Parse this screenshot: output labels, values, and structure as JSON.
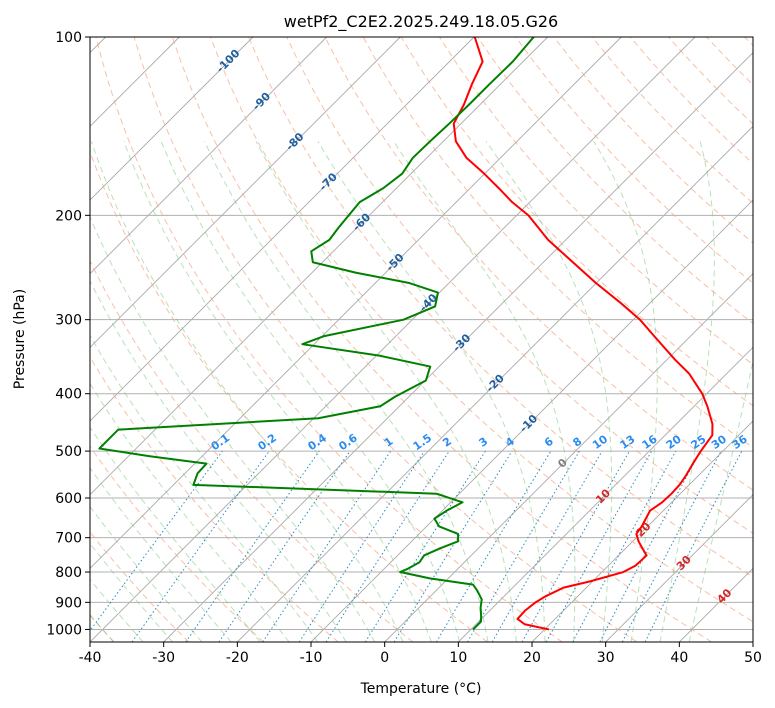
{
  "chart_data": {
    "type": "skew-t",
    "title": "wetPf2_C2E2.2025.249.18.05.G26",
    "xlabel": "Temperature (°C)",
    "ylabel": "Pressure (hPa)",
    "xlim": [
      -40,
      50
    ],
    "ylim": [
      1050,
      100
    ],
    "x_ticks": [
      "-40",
      "-30",
      "-20",
      "-10",
      "0",
      "10",
      "20",
      "30",
      "40",
      "50"
    ],
    "y_ticks": [
      {
        "p": 100,
        "label": "100"
      },
      {
        "p": 200,
        "label": "200"
      },
      {
        "p": 300,
        "label": "300"
      },
      {
        "p": 400,
        "label": "400"
      },
      {
        "p": 500,
        "label": "500"
      },
      {
        "p": 600,
        "label": "600"
      },
      {
        "p": 700,
        "label": "700"
      },
      {
        "p": 800,
        "label": "800"
      },
      {
        "p": 900,
        "label": "900"
      },
      {
        "p": 1000,
        "label": "1000"
      }
    ],
    "isotherm_labels": [
      {
        "t": -100,
        "text": "-100"
      },
      {
        "t": -90,
        "text": "-90"
      },
      {
        "t": -80,
        "text": "-80"
      },
      {
        "t": -70,
        "text": "-70"
      },
      {
        "t": -60,
        "text": "-60"
      },
      {
        "t": -50,
        "text": "-50"
      },
      {
        "t": -40,
        "text": "-40"
      },
      {
        "t": -30,
        "text": "-30"
      },
      {
        "t": -20,
        "text": "-20"
      },
      {
        "t": -10,
        "text": "-10"
      },
      {
        "t": 0,
        "text": "0"
      },
      {
        "t": 10,
        "text": "10"
      },
      {
        "t": 20,
        "text": "20"
      },
      {
        "t": 30,
        "text": "30"
      },
      {
        "t": 40,
        "text": "40"
      }
    ],
    "mixing_ratio_labels": [
      {
        "w": 0.1,
        "text": "0.1"
      },
      {
        "w": 0.2,
        "text": "0.2"
      },
      {
        "w": 0.4,
        "text": "0.4"
      },
      {
        "w": 0.6,
        "text": "0.6"
      },
      {
        "w": 1,
        "text": "1"
      },
      {
        "w": 1.5,
        "text": "1.5"
      },
      {
        "w": 2,
        "text": "2"
      },
      {
        "w": 3,
        "text": "3"
      },
      {
        "w": 4,
        "text": "4"
      },
      {
        "w": 6,
        "text": "6"
      },
      {
        "w": 8,
        "text": "8"
      },
      {
        "w": 10,
        "text": "10"
      },
      {
        "w": 13,
        "text": "13"
      },
      {
        "w": 16,
        "text": "16"
      },
      {
        "w": 20,
        "text": "20"
      },
      {
        "w": 25,
        "text": "25"
      },
      {
        "w": 30,
        "text": "30"
      },
      {
        "w": 36,
        "text": "36"
      }
    ],
    "series": [
      {
        "name": "temperature",
        "color": "#ff0000",
        "points": [
          [
            1000,
            20.6
          ],
          [
            980,
            16.6
          ],
          [
            960,
            14.9
          ],
          [
            930,
            14.8
          ],
          [
            900,
            15.1
          ],
          [
            880,
            15.6
          ],
          [
            850,
            16.9
          ],
          [
            830,
            19.6
          ],
          [
            800,
            22.9
          ],
          [
            780,
            23.7
          ],
          [
            750,
            23.8
          ],
          [
            730,
            22.3
          ],
          [
            710,
            20.8
          ],
          [
            690,
            19.5
          ],
          [
            670,
            19.2
          ],
          [
            650,
            18.7
          ],
          [
            630,
            18.2
          ],
          [
            610,
            18.7
          ],
          [
            590,
            18.8
          ],
          [
            570,
            18.7
          ],
          [
            550,
            18.3
          ],
          [
            520,
            17.5
          ],
          [
            500,
            17.0
          ],
          [
            470,
            16.4
          ],
          [
            450,
            14.9
          ],
          [
            420,
            11.8
          ],
          [
            400,
            9.4
          ],
          [
            370,
            4.9
          ],
          [
            350,
            1.0
          ],
          [
            320,
            -4.9
          ],
          [
            300,
            -9.1
          ],
          [
            280,
            -14.3
          ],
          [
            260,
            -20.1
          ],
          [
            240,
            -26.0
          ],
          [
            220,
            -32.4
          ],
          [
            200,
            -38.4
          ],
          [
            190,
            -42.4
          ],
          [
            180,
            -46.1
          ],
          [
            170,
            -50.1
          ],
          [
            160,
            -54.6
          ],
          [
            150,
            -58.3
          ],
          [
            140,
            -61.0
          ],
          [
            130,
            -62.2
          ],
          [
            120,
            -63.9
          ],
          [
            110,
            -65.5
          ],
          [
            100,
            -69.9
          ]
        ]
      },
      {
        "name": "dewpoint",
        "color": "#008000",
        "points": [
          [
            1000,
            10.3
          ],
          [
            970,
            10.3
          ],
          [
            950,
            9.6
          ],
          [
            920,
            8.4
          ],
          [
            890,
            7.4
          ],
          [
            860,
            5.6
          ],
          [
            840,
            4.2
          ],
          [
            820,
            -2.5
          ],
          [
            800,
            -7.4
          ],
          [
            790,
            -6.8
          ],
          [
            770,
            -6.1
          ],
          [
            750,
            -6.4
          ],
          [
            730,
            -5.2
          ],
          [
            710,
            -3.7
          ],
          [
            690,
            -4.7
          ],
          [
            670,
            -8.3
          ],
          [
            650,
            -10.0
          ],
          [
            630,
            -9.4
          ],
          [
            610,
            -8.4
          ],
          [
            590,
            -13.1
          ],
          [
            570,
            -47.3
          ],
          [
            545,
            -48.3
          ],
          [
            525,
            -48.4
          ],
          [
            510,
            -57.1
          ],
          [
            495,
            -65.0
          ],
          [
            460,
            -65.0
          ],
          [
            440,
            -39.4
          ],
          [
            420,
            -32.6
          ],
          [
            405,
            -31.9
          ],
          [
            380,
            -29.9
          ],
          [
            360,
            -31.2
          ],
          [
            345,
            -39.6
          ],
          [
            330,
            -51.6
          ],
          [
            320,
            -49.8
          ],
          [
            300,
            -41.2
          ],
          [
            285,
            -38.7
          ],
          [
            270,
            -40.2
          ],
          [
            260,
            -45.5
          ],
          [
            250,
            -54.0
          ],
          [
            240,
            -61.3
          ],
          [
            230,
            -63.0
          ],
          [
            220,
            -62.1
          ],
          [
            210,
            -62.5
          ],
          [
            200,
            -62.8
          ],
          [
            190,
            -63.1
          ],
          [
            180,
            -61.8
          ],
          [
            170,
            -61.2
          ],
          [
            160,
            -61.9
          ],
          [
            150,
            -61.8
          ],
          [
            140,
            -61.6
          ],
          [
            130,
            -61.5
          ],
          [
            120,
            -61.5
          ],
          [
            110,
            -61.4
          ],
          [
            100,
            -61.9
          ]
        ]
      }
    ]
  }
}
